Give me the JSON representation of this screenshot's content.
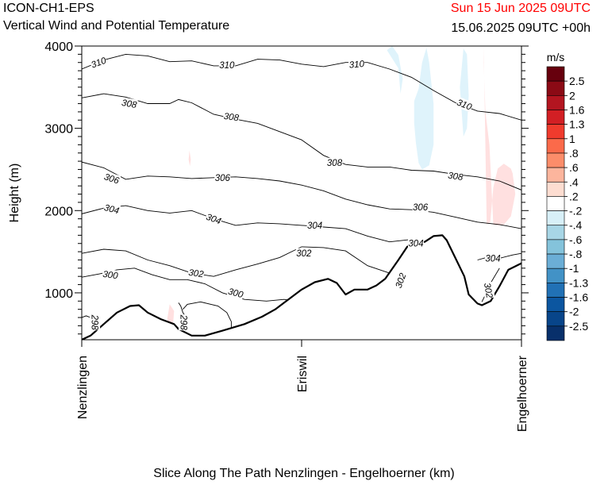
{
  "header": {
    "model": "ICON-CH1-EPS",
    "subtitle": "Vertical Wind and Potential Temperature",
    "valid_time": "Sun 15 Jun 2025 09UTC",
    "run_info": "15.06.2025 09UTC +00h",
    "valid_time_color": "#ff0000"
  },
  "chart_data": {
    "type": "cross-section",
    "title": "Vertical Wind and Potential Temperature",
    "xlabel": "Slice Along The Path Nenzlingen - Engelhoerner (km)",
    "ylabel": "Height (m)",
    "x_ticks": [
      "Nenzlingen",
      "Eriswil",
      "Engelhoerner"
    ],
    "x_range": [
      0,
      1
    ],
    "ylim": [
      430,
      4000
    ],
    "y_ticks": [
      1000,
      2000,
      3000,
      4000
    ],
    "terrain": {
      "x": [
        0.0,
        0.02,
        0.05,
        0.08,
        0.11,
        0.13,
        0.15,
        0.18,
        0.21,
        0.22,
        0.25,
        0.28,
        0.32,
        0.37,
        0.41,
        0.44,
        0.47,
        0.5,
        0.53,
        0.56,
        0.58,
        0.6,
        0.62,
        0.65,
        0.67,
        0.69,
        0.72,
        0.74,
        0.76,
        0.78,
        0.8,
        0.82,
        0.83,
        0.85,
        0.87,
        0.88,
        0.9,
        0.91,
        0.93,
        0.95,
        0.97,
        1.0
      ],
      "height": [
        430,
        480,
        620,
        760,
        840,
        850,
        760,
        680,
        620,
        560,
        480,
        480,
        540,
        620,
        710,
        800,
        920,
        1040,
        1130,
        1170,
        1120,
        980,
        1040,
        1040,
        1090,
        1170,
        1400,
        1560,
        1610,
        1620,
        1690,
        1700,
        1640,
        1420,
        1200,
        980,
        870,
        850,
        900,
        1080,
        1280,
        1360
      ]
    },
    "theta_contours": [
      {
        "level": 298,
        "x": [
          0.0,
          0.01,
          0.02,
          0.03,
          0.04,
          0.06
        ],
        "height": [
          700,
          720,
          700,
          640,
          560,
          480
        ]
      },
      {
        "level": 298,
        "x": [
          0.22,
          0.225,
          0.23,
          0.24
        ],
        "height": [
          880,
          840,
          760,
          680
        ]
      },
      {
        "level": 298,
        "x": [
          0.23,
          0.24,
          0.27,
          0.31,
          0.33,
          0.34,
          0.34,
          0.32,
          0.29
        ],
        "height": [
          800,
          860,
          890,
          840,
          760,
          650,
          520,
          440,
          420
        ]
      },
      {
        "level": 300,
        "x": [
          0.0,
          0.04,
          0.08,
          0.12,
          0.16,
          0.2,
          0.24,
          0.28,
          0.32,
          0.37,
          0.42,
          0.46,
          0.49,
          0.5
        ],
        "height": [
          1190,
          1230,
          1280,
          1300,
          1220,
          1160,
          1160,
          1110,
          1000,
          920,
          900,
          920,
          900,
          820
        ]
      },
      {
        "level": 302,
        "x": [
          0.0,
          0.05,
          0.1,
          0.15,
          0.2,
          0.25,
          0.3,
          0.35,
          0.4,
          0.45,
          0.5,
          0.55,
          0.6,
          0.65,
          0.7,
          0.72,
          0.73
        ],
        "height": [
          1480,
          1530,
          1510,
          1400,
          1330,
          1240,
          1200,
          1280,
          1350,
          1430,
          1560,
          1550,
          1510,
          1330,
          1240,
          1200,
          1250
        ]
      },
      {
        "level": 302,
        "x": [
          0.91,
          0.92,
          0.93,
          0.95
        ],
        "height": [
          890,
          1000,
          1120,
          1300
        ]
      },
      {
        "level": 304,
        "x": [
          0.0,
          0.05,
          0.1,
          0.15,
          0.2,
          0.25,
          0.3,
          0.35,
          0.4,
          0.45,
          0.5,
          0.55,
          0.6,
          0.65,
          0.7,
          0.75,
          0.78,
          0.79,
          0.8
        ],
        "height": [
          1960,
          2030,
          2060,
          2000,
          1970,
          2000,
          1900,
          1820,
          1850,
          1840,
          1820,
          1800,
          1780,
          1690,
          1620,
          1650,
          1610,
          1560,
          1470
        ]
      },
      {
        "level": 304,
        "x": [
          0.9,
          0.92,
          0.95,
          0.98,
          1.0
        ],
        "height": [
          1400,
          1430,
          1420,
          1460,
          1480
        ]
      },
      {
        "level": 306,
        "x": [
          0.0,
          0.05,
          0.1,
          0.15,
          0.2,
          0.25,
          0.3,
          0.35,
          0.4,
          0.45,
          0.5,
          0.55,
          0.6,
          0.65,
          0.7,
          0.75,
          0.8,
          0.85,
          0.9,
          0.95,
          1.0
        ],
        "height": [
          2590,
          2520,
          2380,
          2420,
          2410,
          2390,
          2400,
          2410,
          2390,
          2360,
          2310,
          2240,
          2140,
          2070,
          2020,
          2010,
          1980,
          1920,
          1860,
          1830,
          1780
        ]
      },
      {
        "level": 308,
        "x": [
          0.0,
          0.05,
          0.1,
          0.15,
          0.2,
          0.22,
          0.25,
          0.3,
          0.35,
          0.4,
          0.45,
          0.5,
          0.55,
          0.6,
          0.65,
          0.7,
          0.75,
          0.8,
          0.85,
          0.9,
          0.95,
          1.0
        ],
        "height": [
          3370,
          3420,
          3380,
          3300,
          3300,
          3350,
          3310,
          3170,
          3110,
          3060,
          2960,
          2860,
          2670,
          2560,
          2530,
          2530,
          2490,
          2480,
          2440,
          2410,
          2360,
          2250
        ]
      },
      {
        "level": 310,
        "x": [
          0.0,
          0.05,
          0.1,
          0.15,
          0.2,
          0.25,
          0.3,
          0.35,
          0.4,
          0.45,
          0.5,
          0.55,
          0.6,
          0.65,
          0.7,
          0.75,
          0.8,
          0.85,
          0.9,
          0.95,
          1.0
        ],
        "height": [
          3720,
          3830,
          3900,
          3880,
          3810,
          3820,
          3760,
          3760,
          3840,
          3830,
          3780,
          3750,
          3800,
          3800,
          3720,
          3620,
          3460,
          3310,
          3210,
          3180,
          3100
        ]
      }
    ],
    "contour_labels": [
      {
        "text": "310",
        "x": 0.038,
        "height": 3800,
        "angle": -20
      },
      {
        "text": "310",
        "x": 0.33,
        "height": 3770,
        "angle": 0
      },
      {
        "text": "310",
        "x": 0.625,
        "height": 3780,
        "angle": -5
      },
      {
        "text": "310",
        "x": 0.87,
        "height": 3290,
        "angle": 22
      },
      {
        "text": "308",
        "x": 0.108,
        "height": 3300,
        "angle": 10
      },
      {
        "text": "308",
        "x": 0.34,
        "height": 3140,
        "angle": 8
      },
      {
        "text": "308",
        "x": 0.575,
        "height": 2580,
        "angle": 0
      },
      {
        "text": "308",
        "x": 0.85,
        "height": 2420,
        "angle": 8
      },
      {
        "text": "306",
        "x": 0.068,
        "height": 2390,
        "angle": 18
      },
      {
        "text": "306",
        "x": 0.32,
        "height": 2400,
        "angle": 0
      },
      {
        "text": "306",
        "x": 0.77,
        "height": 2040,
        "angle": 0
      },
      {
        "text": "304",
        "x": 0.068,
        "height": 2020,
        "angle": 15
      },
      {
        "text": "304",
        "x": 0.3,
        "height": 1900,
        "angle": 20
      },
      {
        "text": "304",
        "x": 0.53,
        "height": 1820,
        "angle": 0
      },
      {
        "text": "304",
        "x": 0.76,
        "height": 1600,
        "angle": 0
      },
      {
        "text": "304",
        "x": 0.935,
        "height": 1420,
        "angle": 0
      },
      {
        "text": "302",
        "x": 0.26,
        "height": 1240,
        "angle": 8
      },
      {
        "text": "302",
        "x": 0.505,
        "height": 1480,
        "angle": 0
      },
      {
        "text": "302",
        "x": 0.725,
        "height": 1150,
        "angle": -70
      },
      {
        "text": "302",
        "x": 0.925,
        "height": 1030,
        "angle": 80
      },
      {
        "text": "300",
        "x": 0.065,
        "height": 1220,
        "angle": 8
      },
      {
        "text": "300",
        "x": 0.35,
        "height": 1000,
        "angle": 15
      },
      {
        "text": "298",
        "x": 0.03,
        "height": 640,
        "angle": 90
      },
      {
        "text": "298",
        "x": 0.232,
        "height": 640,
        "angle": 90
      }
    ],
    "wind_areas": [
      {
        "value": 0.3,
        "color": "#ffe0e0",
        "x": [
          0.921,
          0.929,
          0.936,
          0.946,
          0.96,
          0.976,
          0.98,
          0.986,
          0.976,
          0.96,
          0.946,
          0.936,
          0.927,
          0.918,
          0.914,
          0.914
        ],
        "height": [
          1830,
          1860,
          2280,
          2510,
          2570,
          2510,
          2450,
          2200,
          1930,
          1830,
          1820,
          1830,
          2800,
          3200,
          3800,
          4000
        ]
      },
      {
        "value": 0.3,
        "color": "#ffe0e0",
        "x": [
          0.195,
          0.2,
          0.21,
          0.208,
          0.2,
          0.194
        ],
        "height": [
          700,
          860,
          780,
          640,
          570,
          610
        ]
      },
      {
        "value": 0.3,
        "color": "#ffe0e0",
        "x": [
          0.243,
          0.245,
          0.248,
          0.246
        ],
        "height": [
          2620,
          2730,
          2620,
          2540
        ]
      },
      {
        "value": -0.3,
        "color": "#dff3fb",
        "x": [
          0.694,
          0.706,
          0.72,
          0.73,
          0.725,
          0.72
        ],
        "height": [
          3950,
          4000,
          3890,
          3600,
          3420,
          3730
        ]
      },
      {
        "value": -0.3,
        "color": "#dff3fb",
        "x": [
          0.756,
          0.766,
          0.774,
          0.784,
          0.79,
          0.8,
          0.8,
          0.79,
          0.774,
          0.766,
          0.76,
          0.756
        ],
        "height": [
          3330,
          3480,
          3800,
          3980,
          3800,
          3300,
          2800,
          2550,
          2500,
          2580,
          2820,
          3060
        ]
      },
      {
        "value": -0.3,
        "color": "#dff3fb",
        "x": [
          0.86,
          0.868,
          0.876,
          0.88,
          0.876,
          0.868
        ],
        "height": [
          3500,
          3970,
          3900,
          3400,
          3000,
          2900
        ]
      }
    ],
    "colorbar": {
      "unit": "m/s",
      "labels": [
        "2.5",
        "2",
        "1.6",
        "1.3",
        "1",
        ".8",
        ".6",
        ".4",
        ".2",
        "-.2",
        "-.4",
        "-.6",
        "-.8",
        "-1",
        "-1.3",
        "-1.6",
        "-2",
        "-2.5"
      ],
      "colors": [
        "#67000d",
        "#8b0a15",
        "#b31520",
        "#d21f24",
        "#f03b2d",
        "#fb6a4a",
        "#fc8d6a",
        "#fcb59d",
        "#fdddd1",
        "#ffffff",
        "#d8f0f8",
        "#a8d6e6",
        "#84c3db",
        "#6baed6",
        "#4292c6",
        "#2171b5",
        "#0c56a0",
        "#08458a",
        "#08306b"
      ]
    }
  }
}
